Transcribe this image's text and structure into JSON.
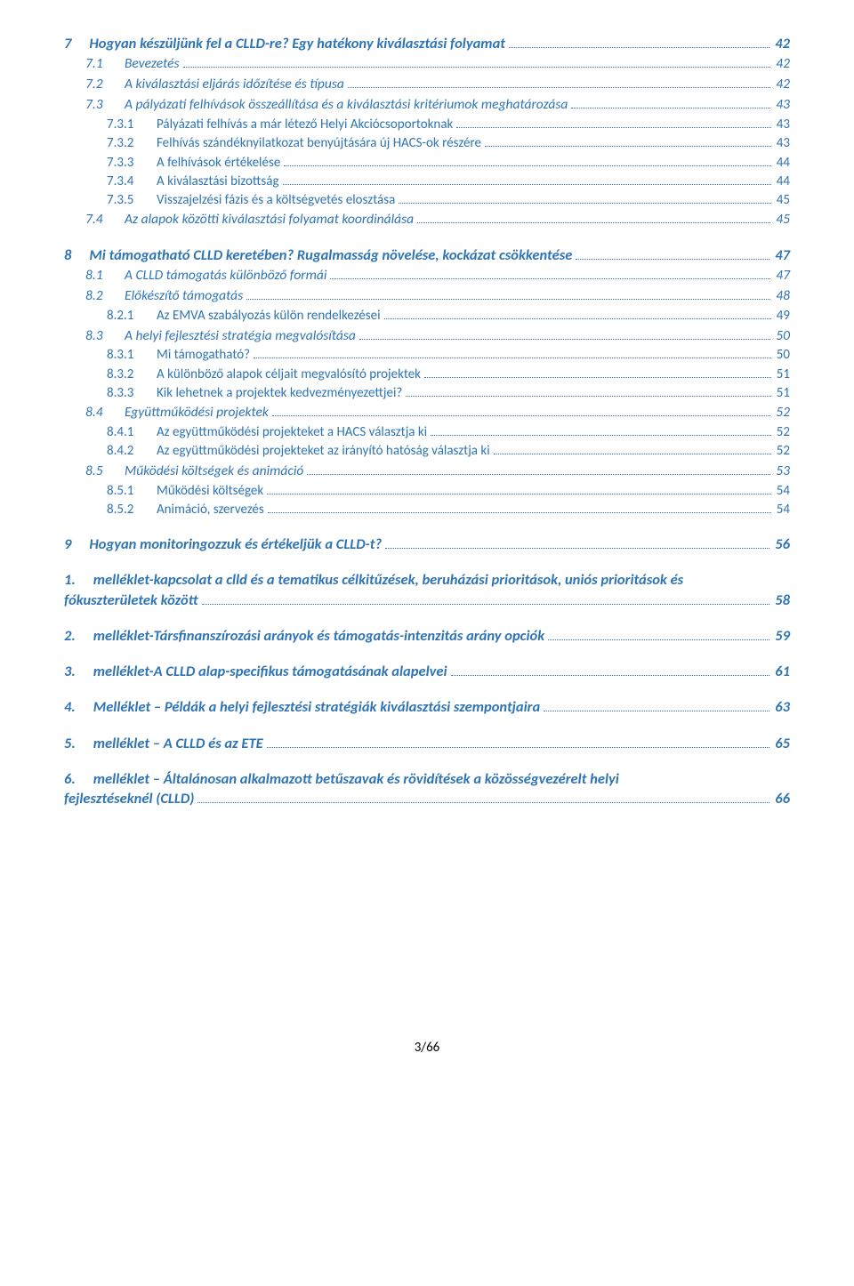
{
  "page_footer": "3/66",
  "typography": {
    "heading_color": "#2e74b5",
    "body_color": "#000000",
    "font_family": "Calibri",
    "lvl1_fontsize_pt": 12.5,
    "lvl2_fontsize_pt": 11.5,
    "lvl3_fontsize_pt": 11,
    "leader_style": "dotted"
  },
  "toc": [
    {
      "level": 1,
      "num": "7",
      "label": "Hogyan készüljünk fel a CLLD-re? Egy hatékony kiválasztási folyamat",
      "page": "42"
    },
    {
      "level": 2,
      "num": "7.1",
      "label": "Bevezetés",
      "page": "42"
    },
    {
      "level": 2,
      "num": "7.2",
      "label": "A kiválasztási eljárás időzítése és típusa",
      "page": "42"
    },
    {
      "level": 2,
      "num": "7.3",
      "label": "A pályázati felhívások összeállítása és a kiválasztási kritériumok meghatározása",
      "page": "43"
    },
    {
      "level": 3,
      "num": "7.3.1",
      "label": "Pályázati felhívás a már létező Helyi Akciócsoportoknak",
      "page": "43"
    },
    {
      "level": 3,
      "num": "7.3.2",
      "label": "Felhívás szándéknyilatkozat benyújtására új HACS-ok részére",
      "page": "43"
    },
    {
      "level": 3,
      "num": "7.3.3",
      "label": "A felhívások értékelése",
      "page": "44"
    },
    {
      "level": 3,
      "num": "7.3.4",
      "label": "A kiválasztási bizottság",
      "page": "44"
    },
    {
      "level": 3,
      "num": "7.3.5",
      "label": "Visszajelzési fázis és a költségvetés elosztása",
      "page": "45"
    },
    {
      "level": 2,
      "num": "7.4",
      "label": "Az alapok közötti kiválasztási folyamat koordinálása",
      "page": "45"
    },
    {
      "level": 1,
      "num": "8",
      "label": "Mi támogatható CLLD keretében? Rugalmasság növelése, kockázat csökkentése",
      "page": "47"
    },
    {
      "level": 2,
      "num": "8.1",
      "label": "A CLLD támogatás különböző formái",
      "page": "47"
    },
    {
      "level": 2,
      "num": "8.2",
      "label": "Előkészítő támogatás",
      "page": "48"
    },
    {
      "level": 3,
      "num": "8.2.1",
      "label": "Az EMVA szabályozás külön rendelkezései",
      "page": "49"
    },
    {
      "level": 2,
      "num": "8.3",
      "label": "A helyi fejlesztési stratégia megvalósítása",
      "page": "50"
    },
    {
      "level": 3,
      "num": "8.3.1",
      "label": "Mi támogatható?",
      "page": "50"
    },
    {
      "level": 3,
      "num": "8.3.2",
      "label": "A különböző alapok céljait megvalósító projektek",
      "page": "51"
    },
    {
      "level": 3,
      "num": "8.3.3",
      "label": "Kik lehetnek a projektek kedvezményezettjei?",
      "page": "51"
    },
    {
      "level": 2,
      "num": "8.4",
      "label": "Együttműködési projektek",
      "page": "52"
    },
    {
      "level": 3,
      "num": "8.4.1",
      "label": "Az együttműködési projekteket a HACS választja ki",
      "page": "52"
    },
    {
      "level": 3,
      "num": "8.4.2",
      "label": "Az együttműködési projekteket az irányító hatóság választja ki",
      "page": "52"
    },
    {
      "level": 2,
      "num": "8.5",
      "label": "Működési költségek és animáció",
      "page": "53"
    },
    {
      "level": 3,
      "num": "8.5.1",
      "label": "Működési költségek",
      "page": "54"
    },
    {
      "level": 3,
      "num": "8.5.2",
      "label": "Animáció, szervezés",
      "page": "54"
    },
    {
      "level": 1,
      "num": "9",
      "label": "Hogyan monitoringozzuk és értékeljük a CLLD-t?",
      "page": "56"
    },
    {
      "level": 1,
      "num": "1.",
      "wrap": true,
      "pre": "melléklet-kapcsolat a clld és a tematikus célkitűzések, beruházási prioritások, uniós prioritások és",
      "label": "fókuszterületek között",
      "page": "58"
    },
    {
      "level": 1,
      "num": "2.",
      "label": "melléklet-Társfinanszírozási arányok és támogatás-intenzitás arány opciók",
      "page": "59"
    },
    {
      "level": 1,
      "num": "3.",
      "label": "melléklet-A CLLD alap-specifikus támogatásának alapelvei",
      "page": "61"
    },
    {
      "level": 1,
      "num": "4.",
      "label": "Melléklet – Példák a helyi fejlesztési stratégiák kiválasztási szempontjaira",
      "page": "63"
    },
    {
      "level": 1,
      "num": "5.",
      "label": "melléklet – A CLLD és az ETE",
      "page": "65"
    },
    {
      "level": 1,
      "num": "6.",
      "wrap": true,
      "pre": "melléklet – Általánosan alkalmazott betűszavak és rövidítések a közösségvezérelt helyi",
      "label": "fejlesztéseknél (CLLD)",
      "page": "66"
    }
  ]
}
